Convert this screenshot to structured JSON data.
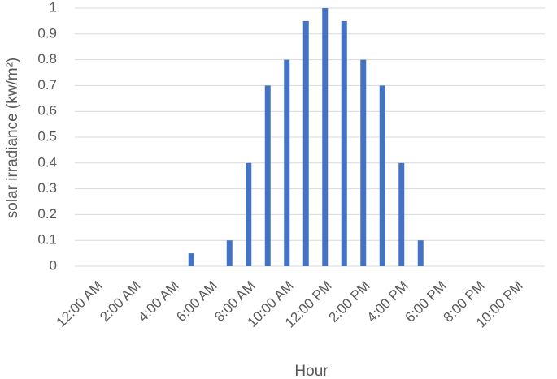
{
  "chart_data": {
    "type": "bar",
    "x_label": "Hour",
    "y_label": "solar irradiance (kw/m²)",
    "categories": [
      "12:00 AM",
      null,
      "2:00 AM",
      null,
      "4:00 AM",
      null,
      "6:00 AM",
      null,
      "8:00 AM",
      null,
      "10:00 AM",
      null,
      "12:00 PM",
      null,
      "2:00 PM",
      null,
      "4:00 PM",
      null,
      "6:00 PM",
      null,
      "8:00 PM",
      null,
      "10:00 PM",
      null
    ],
    "values": [
      0,
      0,
      0,
      0,
      0,
      0.05,
      0,
      0.1,
      0.4,
      0.7,
      0.8,
      0.95,
      1,
      0.95,
      0.8,
      0.7,
      0.4,
      0.1,
      0,
      0,
      0,
      0,
      0,
      0
    ],
    "color": "#4472c4",
    "ylim": [
      0,
      1
    ],
    "yticks": [
      0,
      0.1,
      0.2,
      0.3,
      0.4,
      0.5,
      0.6,
      0.7,
      0.8,
      0.9,
      1
    ],
    "grid": true
  }
}
